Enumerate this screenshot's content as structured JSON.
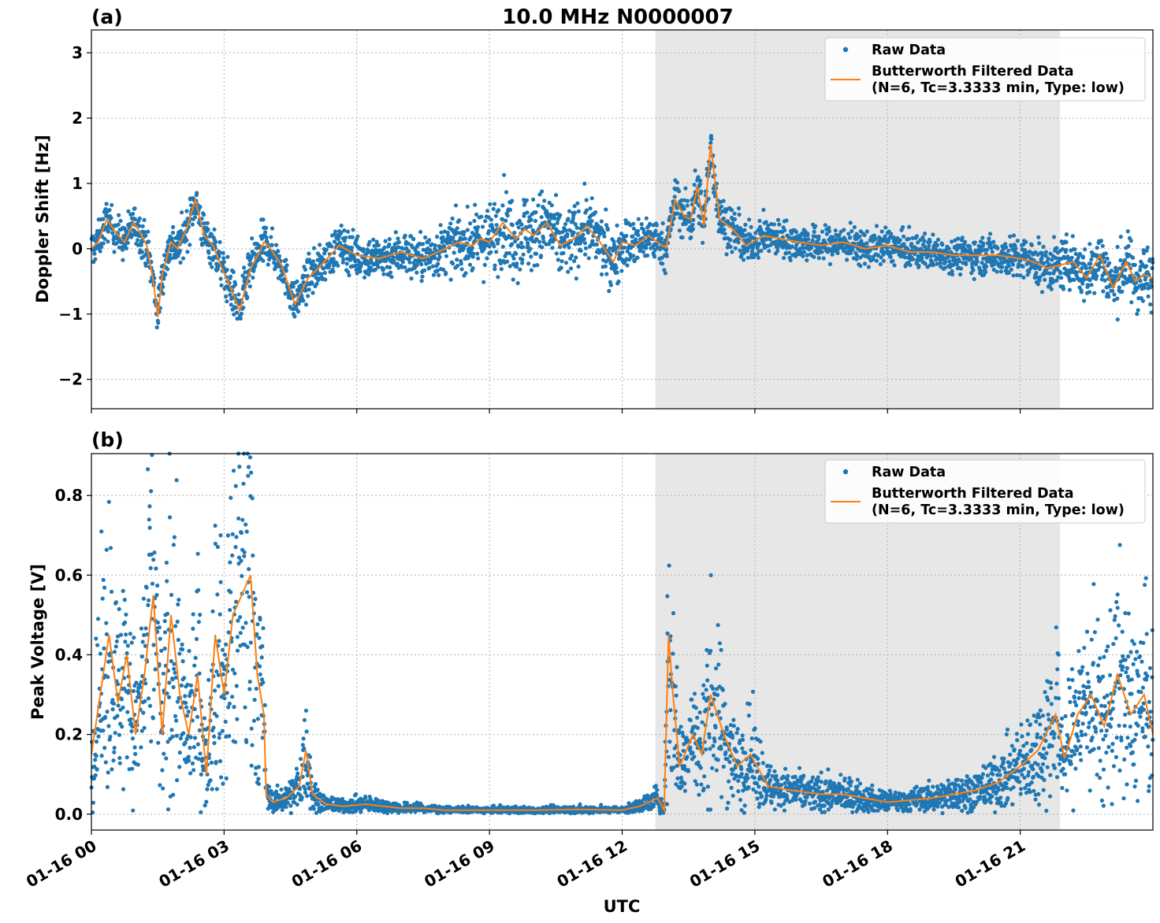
{
  "figure": {
    "title": "10.0 MHz N0000007",
    "xlabel": "UTC"
  },
  "colors": {
    "raw": "#1f77b4",
    "filtered": "#ff7f0e",
    "shade": "#e7e7e7"
  },
  "legend": {
    "raw": "Raw Data",
    "filtered_line1": "Butterworth Filtered Data",
    "filtered_line2": "(N=6, Tc=3.3333 min, Type: low)"
  },
  "chart_data": [
    {
      "type": "scatter",
      "panel": "(a)",
      "ylabel": "Doppler Shift [Hz]",
      "xlim": [
        0,
        24
      ],
      "ylim": [
        -2.45,
        3.35
      ],
      "x_unit": "hours UTC on 01-16",
      "x_ticks": [
        0,
        3,
        6,
        9,
        12,
        15,
        18,
        21
      ],
      "x_tick_labels": [
        "01-16 00",
        "01-16 03",
        "01-16 06",
        "01-16 09",
        "01-16 12",
        "01-16 15",
        "01-16 18",
        "01-16 21"
      ],
      "y_ticks": [
        -2,
        -1,
        0,
        1,
        2,
        3
      ],
      "y_tick_labels": [
        "−2",
        "−1",
        "0",
        "1",
        "2",
        "3"
      ],
      "shaded_range": [
        12.75,
        21.9
      ],
      "grid": true,
      "legend_position": "top-right",
      "series": [
        {
          "name": "Butterworth Filtered Data (N=6, Tc=3.3333 min, Type: low)",
          "kind": "line",
          "spread": [
            [
              0,
              0.2
            ],
            [
              3.9,
              0.25
            ],
            [
              4.0,
              0.2
            ],
            [
              7.5,
              0.25
            ],
            [
              8.5,
              0.3
            ],
            [
              9.3,
              0.45
            ],
            [
              12.0,
              0.3
            ],
            [
              12.9,
              0.22
            ],
            [
              13.7,
              0.3
            ],
            [
              15.0,
              0.2
            ],
            [
              19.5,
              0.18
            ],
            [
              21.5,
              0.25
            ],
            [
              22.5,
              0.3
            ],
            [
              24,
              0.35
            ]
          ],
          "x": [
            0.0,
            0.15,
            0.35,
            0.55,
            0.75,
            0.95,
            1.1,
            1.25,
            1.4,
            1.5,
            1.6,
            1.8,
            1.95,
            2.15,
            2.35,
            2.55,
            2.75,
            2.95,
            3.15,
            3.35,
            3.6,
            3.8,
            3.9,
            4.0,
            4.3,
            4.6,
            4.9,
            5.2,
            5.6,
            6.0,
            6.5,
            7.0,
            7.5,
            8.0,
            8.3,
            8.6,
            8.8,
            9.0,
            9.3,
            9.6,
            9.8,
            10.0,
            10.3,
            10.6,
            10.9,
            11.2,
            11.5,
            11.8,
            12.0,
            12.3,
            12.6,
            12.9,
            13.0,
            13.2,
            13.4,
            13.55,
            13.7,
            13.85,
            14.0,
            14.2,
            14.5,
            14.8,
            15.2,
            15.6,
            16.0,
            16.5,
            17.0,
            17.5,
            18.0,
            18.5,
            19.0,
            19.5,
            20.0,
            20.5,
            21.0,
            21.3,
            21.6,
            21.9,
            22.2,
            22.5,
            22.8,
            23.1,
            23.4,
            23.6,
            23.8,
            24.0
          ],
          "values": [
            0.0,
            0.1,
            0.45,
            0.25,
            0.1,
            0.4,
            0.25,
            0.05,
            -0.5,
            -1.05,
            -0.4,
            0.1,
            0.0,
            0.3,
            0.75,
            0.2,
            0.05,
            -0.3,
            -0.6,
            -0.95,
            -0.3,
            -0.05,
            0.1,
            0.05,
            -0.25,
            -0.85,
            -0.45,
            -0.25,
            0.05,
            -0.1,
            -0.15,
            -0.05,
            -0.15,
            0.0,
            0.1,
            0.05,
            0.15,
            0.1,
            0.4,
            0.15,
            0.3,
            0.2,
            0.4,
            0.05,
            0.15,
            0.35,
            0.1,
            -0.2,
            0.1,
            0.05,
            0.2,
            0.05,
            0.02,
            0.75,
            0.5,
            0.45,
            0.95,
            0.35,
            1.6,
            0.45,
            0.3,
            0.05,
            0.2,
            0.15,
            0.1,
            0.05,
            0.1,
            0.0,
            0.05,
            -0.05,
            -0.05,
            -0.1,
            -0.1,
            -0.1,
            -0.15,
            -0.2,
            -0.3,
            -0.25,
            -0.2,
            -0.45,
            -0.1,
            -0.6,
            -0.2,
            -0.5,
            -0.4,
            -0.45
          ]
        }
      ]
    },
    {
      "type": "scatter",
      "panel": "(b)",
      "ylabel": "Peak Voltage [V]",
      "xlim": [
        0,
        24
      ],
      "ylim": [
        -0.04,
        0.905
      ],
      "x_unit": "hours UTC on 01-16",
      "x_ticks": [
        0,
        3,
        6,
        9,
        12,
        15,
        18,
        21
      ],
      "x_tick_labels": [
        "01-16 00",
        "01-16 03",
        "01-16 06",
        "01-16 09",
        "01-16 12",
        "01-16 15",
        "01-16 18",
        "01-16 21"
      ],
      "y_ticks": [
        0.0,
        0.2,
        0.4,
        0.6,
        0.8
      ],
      "y_tick_labels": [
        "0.0",
        "0.2",
        "0.4",
        "0.6",
        "0.8"
      ],
      "shaded_range": [
        12.75,
        21.9
      ],
      "grid": true,
      "legend_position": "top-right",
      "series": [
        {
          "name": "Butterworth Filtered Data (N=6, Tc=3.3333 min, Type: low)",
          "kind": "line",
          "spread_scale": 0.6,
          "x": [
            0.0,
            0.2,
            0.4,
            0.6,
            0.8,
            1.0,
            1.2,
            1.4,
            1.6,
            1.8,
            2.0,
            2.2,
            2.4,
            2.6,
            2.8,
            3.0,
            3.2,
            3.4,
            3.6,
            3.75,
            3.9,
            3.95,
            4.1,
            4.4,
            4.7,
            4.85,
            5.0,
            5.3,
            5.7,
            6.2,
            6.6,
            7.0,
            7.5,
            8.0,
            9.0,
            10.0,
            11.0,
            12.0,
            12.4,
            12.8,
            12.95,
            13.05,
            13.15,
            13.3,
            13.6,
            13.8,
            14.0,
            14.3,
            14.6,
            14.9,
            15.3,
            15.8,
            16.5,
            17.0,
            17.5,
            18.0,
            18.5,
            19.0,
            19.5,
            20.0,
            20.5,
            21.0,
            21.4,
            21.8,
            22.0,
            22.3,
            22.6,
            22.9,
            23.2,
            23.5,
            23.8,
            24.0
          ],
          "values": [
            0.15,
            0.3,
            0.45,
            0.28,
            0.4,
            0.2,
            0.35,
            0.55,
            0.2,
            0.5,
            0.3,
            0.2,
            0.35,
            0.1,
            0.45,
            0.3,
            0.5,
            0.55,
            0.6,
            0.35,
            0.25,
            0.05,
            0.03,
            0.04,
            0.07,
            0.16,
            0.05,
            0.025,
            0.02,
            0.025,
            0.02,
            0.015,
            0.015,
            0.01,
            0.01,
            0.01,
            0.012,
            0.01,
            0.02,
            0.04,
            0.01,
            0.45,
            0.3,
            0.12,
            0.2,
            0.15,
            0.3,
            0.2,
            0.12,
            0.15,
            0.07,
            0.06,
            0.05,
            0.05,
            0.04,
            0.03,
            0.035,
            0.04,
            0.05,
            0.06,
            0.08,
            0.12,
            0.16,
            0.25,
            0.14,
            0.25,
            0.3,
            0.22,
            0.35,
            0.25,
            0.3,
            0.2
          ]
        }
      ]
    }
  ]
}
